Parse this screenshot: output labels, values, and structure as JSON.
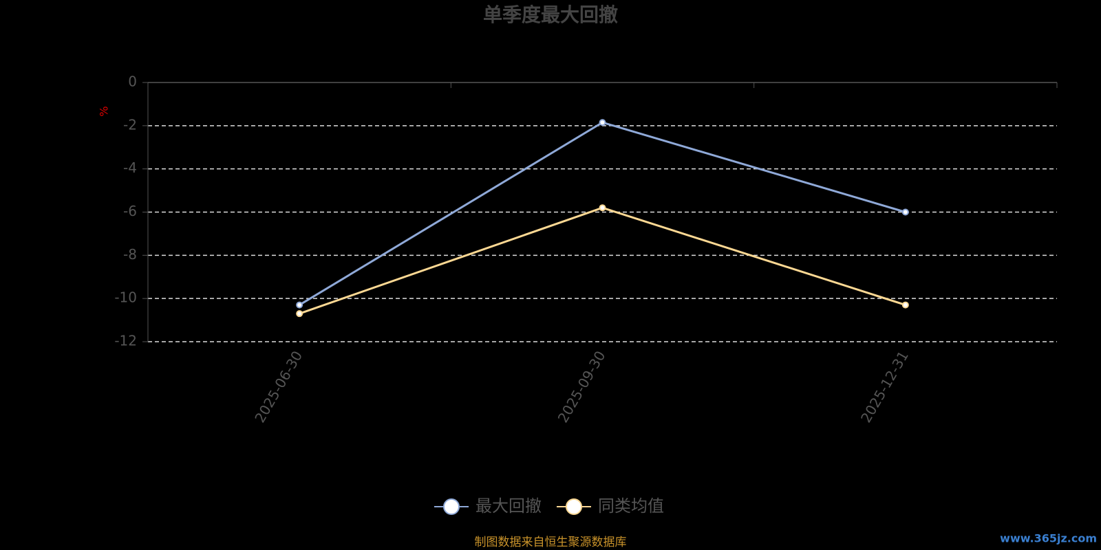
{
  "chart_data": {
    "type": "line",
    "title": "单季度最大回撤",
    "y_label": "%",
    "categories": [
      "2025-06-30",
      "2025-09-30",
      "2025-12-31"
    ],
    "series": [
      {
        "name": "最大回撤",
        "color": "#8fa9d8",
        "values": [
          -10.3,
          -1.85,
          -6.0
        ]
      },
      {
        "name": "同类均值",
        "color": "#fcd893",
        "values": [
          -10.7,
          -5.8,
          -10.3
        ]
      }
    ],
    "ylim": [
      -12,
      0
    ],
    "yticks": [
      0,
      -2,
      -4,
      -6,
      -8,
      -10,
      -12
    ],
    "grid": true,
    "legend": "bottom",
    "source": "制图数据来自恒生聚源数据库",
    "watermark": "www.365jz.com"
  }
}
